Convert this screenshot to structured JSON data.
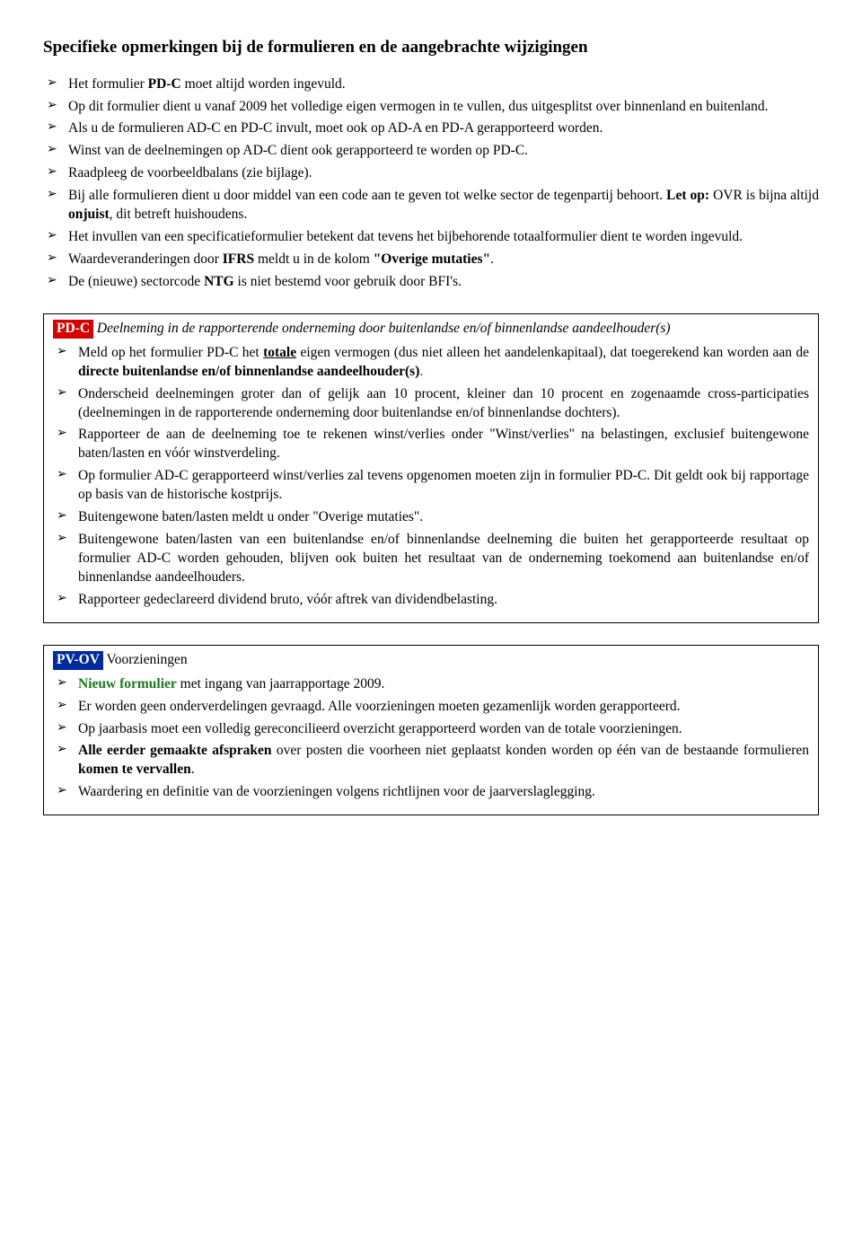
{
  "heading": "Specifieke opmerkingen bij de formulieren en de aangebrachte wijzigingen",
  "intro": {
    "b1": {
      "pre": "Het formulier ",
      "bold": "PD-C",
      "post": " moet altijd worden ingevuld."
    },
    "b2": "Op dit formulier dient u vanaf 2009 het volledige eigen vermogen in te vullen, dus uitgesplitst over binnenland en buitenland.",
    "b3": "Als u de formulieren AD-C en PD-C invult, moet ook op AD-A en PD-A gerapporteerd worden.",
    "b4": "Winst van de deelnemingen op AD-C dient ook gerapporteerd te worden op PD-C.",
    "b5": "Raadpleeg de voorbeeldbalans (zie bijlage).",
    "b6": {
      "pre": "Bij alle formulieren dient u door middel van een code aan te geven tot welke sector de tegenpartij behoort. ",
      "bold1": "Let op:",
      "mid": " OVR is bijna altijd ",
      "bold2": "onjuist",
      "post": ", dit betreft huishoudens."
    },
    "b7": "Het invullen van een specificatieformulier betekent dat tevens het bijbehorende totaalformulier dient te worden ingevuld.",
    "b8": {
      "pre": "Waardeveranderingen door ",
      "bold1": "IFRS",
      "mid": " meldt u in de kolom ",
      "bold2": "\"Overige mutaties\"",
      "post": "."
    },
    "b9": {
      "pre": "De (nieuwe) sectorcode ",
      "bold": "NTG",
      "post": " is niet bestemd voor gebruik door BFI's."
    }
  },
  "pdc": {
    "tag": "PD-C",
    "title": " Deelneming in de rapporterende onderneming door buitenlandse en/of binnenlandse aandeelhouder(s)",
    "b1": {
      "pre": "Meld op het formulier PD-C het ",
      "bu": "totale",
      "mid": " eigen vermogen (dus niet alleen het aandelenkapitaal), dat toegerekend kan worden aan de ",
      "bold": "directe buitenlandse en/of binnenlandse aandeelhouder(s)",
      "post": "."
    },
    "b2": "Onderscheid deelnemingen groter dan of gelijk aan 10 procent, kleiner dan 10 procent en zogenaamde cross-participaties (deelnemingen in de rapporterende onderneming door buitenlandse en/of binnenlandse dochters).",
    "b3": "Rapporteer de aan de deelneming toe te rekenen winst/verlies onder \"Winst/verlies\" na belastingen, exclusief buitengewone baten/lasten en vóór winstverdeling.",
    "b4": "Op formulier AD-C gerapporteerd winst/verlies zal tevens opgenomen moeten zijn in formulier PD-C. Dit geldt ook bij rapportage op basis van de historische kostprijs.",
    "b5": "Buitengewone baten/lasten meldt u onder \"Overige mutaties\".",
    "b6": "Buitengewone baten/lasten van een buitenlandse en/of binnenlandse deelneming die buiten het gerapporteerde resultaat op formulier AD-C worden gehouden, blijven ook buiten het resultaat van de onderneming toekomend aan buitenlandse en/of binnenlandse aandeelhouders.",
    "b7": "Rapporteer gedeclareerd dividend bruto, vóór aftrek van dividendbelasting."
  },
  "pvov": {
    "tag": "PV-OV",
    "title": " Voorzieningen",
    "b1": {
      "bold": "Nieuw formulier",
      "post": " met ingang van jaarrapportage 2009."
    },
    "b2": "Er worden geen onderverdelingen gevraagd. Alle voorzieningen moeten gezamenlijk worden gerapporteerd.",
    "b3": "Op jaarbasis moet een volledig gereconcilieerd overzicht gerapporteerd worden van de totale voorzieningen.",
    "b4": {
      "bold1": "Alle eerder gemaakte afspraken",
      "mid": " over posten die voorheen niet geplaatst konden worden op één van de bestaande formulieren ",
      "bold2": "komen te vervallen",
      "post": "."
    },
    "b5": "Waardering en definitie van de voorzieningen volgens richtlijnen voor de jaarverslaglegging."
  }
}
